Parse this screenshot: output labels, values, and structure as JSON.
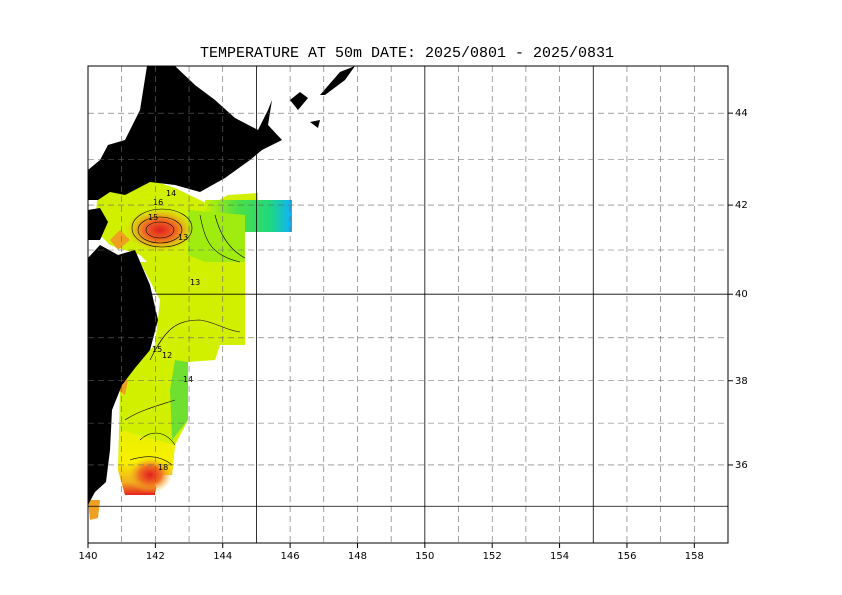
{
  "title": "TEMPERATURE AT  50m  DATE:  2025/0801 -  2025/0831",
  "map": {
    "projection": "mercator",
    "xlim": [
      140,
      159
    ],
    "ylim": [
      34.1,
      45
    ],
    "xticks": [
      140,
      142,
      144,
      146,
      148,
      150,
      152,
      154,
      156,
      158
    ],
    "yticks": [
      36,
      38,
      40,
      42,
      44
    ],
    "xgrid": [
      141,
      142,
      143,
      144,
      145,
      146,
      147,
      148,
      149,
      150,
      151,
      152,
      153,
      154,
      155,
      156,
      157,
      158
    ],
    "ygrid": [
      35,
      36,
      37,
      38,
      39,
      40,
      41,
      42,
      43,
      44
    ],
    "major_every": 5,
    "contour_labels": [
      "16",
      "14",
      "15",
      "13",
      "13",
      "15",
      "12",
      "14",
      "18"
    ]
  }
}
